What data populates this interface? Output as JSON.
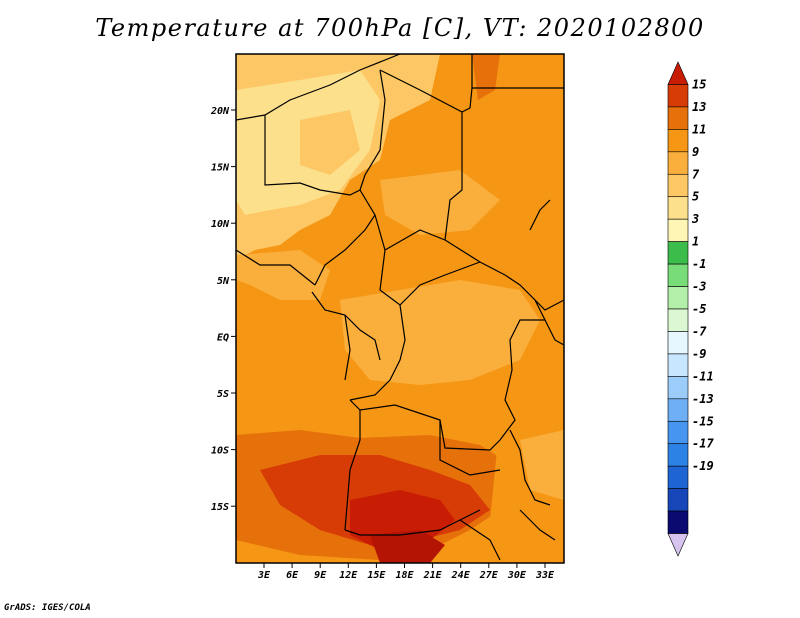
{
  "title": "Temperature at 700hPa [C], VT: 2020102800",
  "credit": "GrADS: IGES/COLA",
  "map": {
    "lat_labels": [
      "20N",
      "15N",
      "10N",
      "5N",
      "EQ",
      "5S",
      "10S",
      "15S"
    ],
    "lon_labels": [
      "3E",
      "6E",
      "9E",
      "12E",
      "15E",
      "18E",
      "21E",
      "24E",
      "27E",
      "30E",
      "33E"
    ]
  },
  "colorbar": {
    "labels": [
      "15",
      "13",
      "11",
      "9",
      "7",
      "5",
      "3",
      "1",
      "-1",
      "-3",
      "-5",
      "-7",
      "-9",
      "-11",
      "-13",
      "-15",
      "-17",
      "-19"
    ],
    "colors": [
      "#d7c4ee",
      "#0a0a70",
      "#1646b8",
      "#1e64d2",
      "#2d82e6",
      "#4696f0",
      "#6eaff5",
      "#9ccdfa",
      "#c8e6ff",
      "#e6f7ff",
      "#dcf8d2",
      "#b4efa9",
      "#78dc78",
      "#3cbd4b",
      "#fff5b4",
      "#fde08c",
      "#fcc764",
      "#faae3c",
      "#f59614",
      "#e6700a",
      "#d83c06",
      "#c81c04"
    ]
  }
}
